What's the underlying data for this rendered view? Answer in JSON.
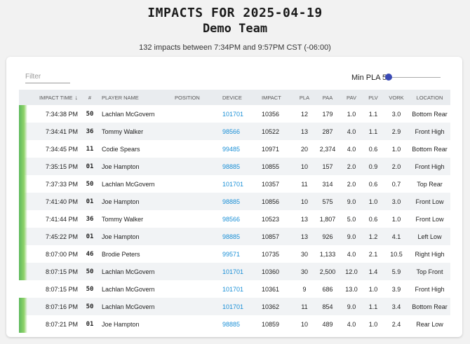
{
  "header": {
    "title": "IMPACTS FOR 2025-04-19",
    "team": "Demo Team",
    "summary": "132 impacts between 7:34PM and 9:57PM CST (-06:00)"
  },
  "controls": {
    "filter_placeholder": "Filter",
    "min_pla_label": "Min PLA 5"
  },
  "table": {
    "columns": [
      "IMPACT TIME",
      "#",
      "PLAYER NAME",
      "POSITION",
      "DEVICE",
      "IMPACT",
      "PLA",
      "PAA",
      "PAV",
      "PLV",
      "VORK",
      "LOCATION"
    ],
    "sort_icon": "↓",
    "rows": [
      {
        "time": "7:34:38 PM",
        "num": "50",
        "player": "Lachlan McGovern",
        "position": "",
        "device": "101701",
        "impact": "10356",
        "pla": "12",
        "paa": "179",
        "pav": "1.0",
        "plv": "1.1",
        "vork": "3.0",
        "location": "Bottom Rear",
        "bar": true
      },
      {
        "time": "7:34:41 PM",
        "num": "36",
        "player": "Tommy Walker",
        "position": "",
        "device": "98566",
        "impact": "10522",
        "pla": "13",
        "paa": "287",
        "pav": "4.0",
        "plv": "1.1",
        "vork": "2.9",
        "location": "Front High",
        "bar": true
      },
      {
        "time": "7:34:45 PM",
        "num": "11",
        "player": "Codie Spears",
        "position": "",
        "device": "99485",
        "impact": "10971",
        "pla": "20",
        "paa": "2,374",
        "pav": "4.0",
        "plv": "0.6",
        "vork": "1.0",
        "location": "Bottom Rear",
        "bar": true
      },
      {
        "time": "7:35:15 PM",
        "num": "01",
        "player": "Joe Hampton",
        "position": "",
        "device": "98885",
        "impact": "10855",
        "pla": "10",
        "paa": "157",
        "pav": "2.0",
        "plv": "0.9",
        "vork": "2.0",
        "location": "Front High",
        "bar": true
      },
      {
        "time": "7:37:33 PM",
        "num": "50",
        "player": "Lachlan McGovern",
        "position": "",
        "device": "101701",
        "impact": "10357",
        "pla": "11",
        "paa": "314",
        "pav": "2.0",
        "plv": "0.6",
        "vork": "0.7",
        "location": "Top Rear",
        "bar": true
      },
      {
        "time": "7:41:40 PM",
        "num": "01",
        "player": "Joe Hampton",
        "position": "",
        "device": "98885",
        "impact": "10856",
        "pla": "10",
        "paa": "575",
        "pav": "9.0",
        "plv": "1.0",
        "vork": "3.0",
        "location": "Front Low",
        "bar": true
      },
      {
        "time": "7:41:44 PM",
        "num": "36",
        "player": "Tommy Walker",
        "position": "",
        "device": "98566",
        "impact": "10523",
        "pla": "13",
        "paa": "1,807",
        "pav": "5.0",
        "plv": "0.6",
        "vork": "1.0",
        "location": "Front Low",
        "bar": true
      },
      {
        "time": "7:45:22 PM",
        "num": "01",
        "player": "Joe Hampton",
        "position": "",
        "device": "98885",
        "impact": "10857",
        "pla": "13",
        "paa": "926",
        "pav": "9.0",
        "plv": "1.2",
        "vork": "4.1",
        "location": "Left Low",
        "bar": true
      },
      {
        "time": "8:07:00 PM",
        "num": "46",
        "player": "Brodie Peters",
        "position": "",
        "device": "99571",
        "impact": "10735",
        "pla": "30",
        "paa": "1,133",
        "pav": "4.0",
        "plv": "2.1",
        "vork": "10.5",
        "location": "Right High",
        "bar": true
      },
      {
        "time": "8:07:15 PM",
        "num": "50",
        "player": "Lachlan McGovern",
        "position": "",
        "device": "101701",
        "impact": "10360",
        "pla": "30",
        "paa": "2,500",
        "pav": "12.0",
        "plv": "1.4",
        "vork": "5.9",
        "location": "Top Front",
        "bar": true
      },
      {
        "time": "8:07:15 PM",
        "num": "50",
        "player": "Lachlan McGovern",
        "position": "",
        "device": "101701",
        "impact": "10361",
        "pla": "9",
        "paa": "686",
        "pav": "13.0",
        "plv": "1.0",
        "vork": "3.9",
        "location": "Front High",
        "bar": false
      },
      {
        "time": "8:07:16 PM",
        "num": "50",
        "player": "Lachlan McGovern",
        "position": "",
        "device": "101701",
        "impact": "10362",
        "pla": "11",
        "paa": "854",
        "pav": "9.0",
        "plv": "1.1",
        "vork": "3.4",
        "location": "Bottom Rear",
        "bar": true
      },
      {
        "time": "8:07:21 PM",
        "num": "01",
        "player": "Joe Hampton",
        "position": "",
        "device": "98885",
        "impact": "10859",
        "pla": "10",
        "paa": "489",
        "pav": "4.0",
        "plv": "1.0",
        "vork": "2.4",
        "location": "Rear Low",
        "bar": true
      }
    ]
  },
  "colors": {
    "accent": "#3a4ab5",
    "link": "#1a8fd6",
    "bar": "#5cb85c"
  }
}
